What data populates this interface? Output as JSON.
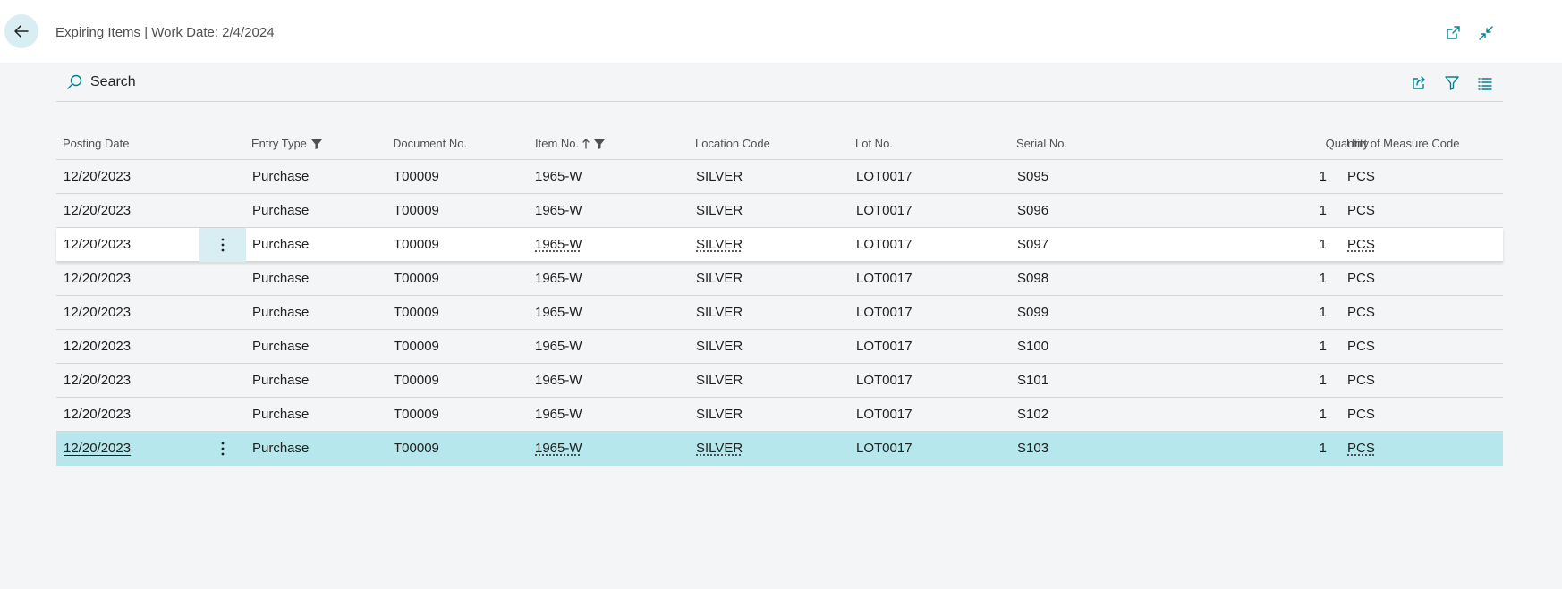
{
  "header": {
    "title": "Expiring Items | Work Date: 2/4/2024"
  },
  "toolbar": {
    "search_label": "Search"
  },
  "columns": {
    "posting_date": "Posting Date",
    "entry_type": "Entry Type",
    "document_no": "Document No.",
    "item_no": "Item No.",
    "location_code": "Location Code",
    "lot_no": "Lot No.",
    "serial_no": "Serial No.",
    "quantity": "Quantity",
    "uom": "Unit of Measure Code"
  },
  "rows": [
    {
      "posting_date": "12/20/2023",
      "entry_type": "Purchase",
      "document_no": "T00009",
      "item_no": "1965-W",
      "location_code": "SILVER",
      "lot_no": "LOT0017",
      "serial_no": "S095",
      "quantity": "1",
      "uom": "PCS"
    },
    {
      "posting_date": "12/20/2023",
      "entry_type": "Purchase",
      "document_no": "T00009",
      "item_no": "1965-W",
      "location_code": "SILVER",
      "lot_no": "LOT0017",
      "serial_no": "S096",
      "quantity": "1",
      "uom": "PCS"
    },
    {
      "posting_date": "12/20/2023",
      "entry_type": "Purchase",
      "document_no": "T00009",
      "item_no": "1965-W",
      "location_code": "SILVER",
      "lot_no": "LOT0017",
      "serial_no": "S097",
      "quantity": "1",
      "uom": "PCS"
    },
    {
      "posting_date": "12/20/2023",
      "entry_type": "Purchase",
      "document_no": "T00009",
      "item_no": "1965-W",
      "location_code": "SILVER",
      "lot_no": "LOT0017",
      "serial_no": "S098",
      "quantity": "1",
      "uom": "PCS"
    },
    {
      "posting_date": "12/20/2023",
      "entry_type": "Purchase",
      "document_no": "T00009",
      "item_no": "1965-W",
      "location_code": "SILVER",
      "lot_no": "LOT0017",
      "serial_no": "S099",
      "quantity": "1",
      "uom": "PCS"
    },
    {
      "posting_date": "12/20/2023",
      "entry_type": "Purchase",
      "document_no": "T00009",
      "item_no": "1965-W",
      "location_code": "SILVER",
      "lot_no": "LOT0017",
      "serial_no": "S100",
      "quantity": "1",
      "uom": "PCS"
    },
    {
      "posting_date": "12/20/2023",
      "entry_type": "Purchase",
      "document_no": "T00009",
      "item_no": "1965-W",
      "location_code": "SILVER",
      "lot_no": "LOT0017",
      "serial_no": "S101",
      "quantity": "1",
      "uom": "PCS"
    },
    {
      "posting_date": "12/20/2023",
      "entry_type": "Purchase",
      "document_no": "T00009",
      "item_no": "1965-W",
      "location_code": "SILVER",
      "lot_no": "LOT0017",
      "serial_no": "S102",
      "quantity": "1",
      "uom": "PCS"
    },
    {
      "posting_date": "12/20/2023",
      "entry_type": "Purchase",
      "document_no": "T00009",
      "item_no": "1965-W",
      "location_code": "SILVER",
      "lot_no": "LOT0017",
      "serial_no": "S103",
      "quantity": "1",
      "uom": "PCS"
    }
  ],
  "icons": {
    "back": "arrow-left-icon",
    "open_new_window": "open-in-new-window-icon",
    "collapse": "collapse-icon",
    "search": "search-icon",
    "share": "share-icon",
    "filter": "filter-icon",
    "list_view": "list-view-icon",
    "row_actions": "more-vertical-icon",
    "column_filter": "filter-icon",
    "sort_ascending": "arrow-up-icon"
  },
  "colors": {
    "accent": "#00838f",
    "selected_row": "#b5e7ec",
    "hover_cell": "#d9eef2",
    "background": "#f4f5f7"
  }
}
